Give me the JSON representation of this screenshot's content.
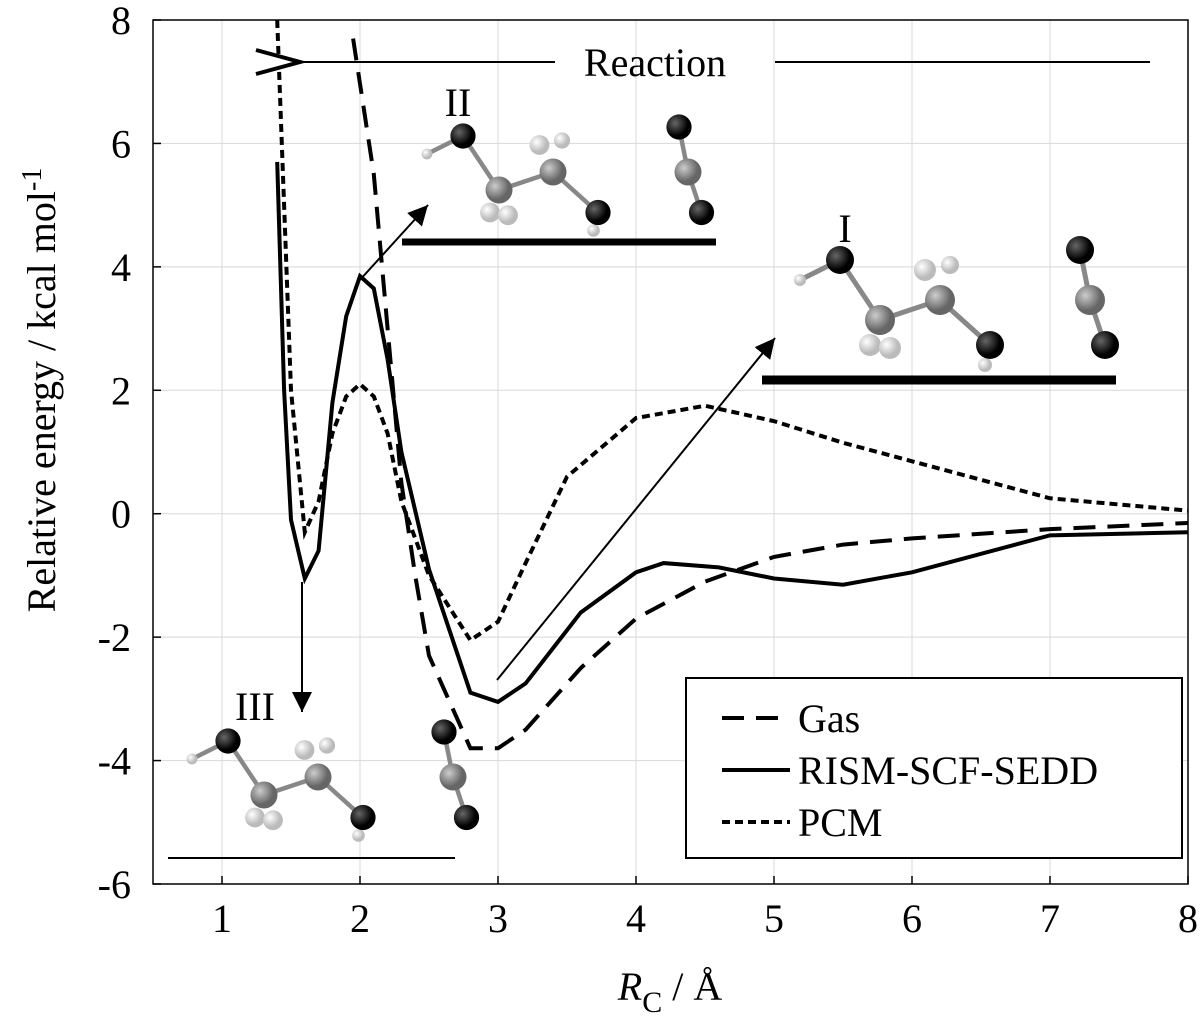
{
  "chart_data": {
    "type": "line",
    "x_label": "R",
    "x_label_sub": "C",
    "x_label_unit": " / Å",
    "y_label": "Relative energy / kcal mol",
    "y_label_sup": "-1",
    "annotations": [
      "Reaction",
      "I",
      "II",
      "III"
    ],
    "xlim": [
      0.5,
      8
    ],
    "ylim": [
      -6,
      8
    ],
    "xticks": [
      1,
      2,
      3,
      4,
      5,
      6,
      7,
      8
    ],
    "yticks": [
      -6,
      -4,
      -2,
      0,
      2,
      4,
      6,
      8
    ],
    "grid": true,
    "legend": "lower right",
    "series": [
      {
        "name": "Gas",
        "color": "#000000",
        "dash": "dashed",
        "x": [
          1.95,
          2.1,
          2.2,
          2.3,
          2.4,
          2.5,
          2.6,
          2.8,
          3.0,
          3.2,
          3.6,
          4.0,
          4.5,
          5.0,
          5.5,
          6,
          7,
          8
        ],
        "values": [
          7.7,
          5.5,
          3.0,
          0.5,
          -1.0,
          -2.3,
          -2.8,
          -3.8,
          -3.8,
          -3.5,
          -2.5,
          -1.7,
          -1.1,
          -0.7,
          -0.5,
          -0.4,
          -0.25,
          -0.15
        ]
      },
      {
        "name": "RISM-SCF-SEDD",
        "color": "#000000",
        "dash": "solid",
        "x": [
          1.4,
          1.45,
          1.5,
          1.6,
          1.7,
          1.8,
          1.9,
          2.0,
          2.1,
          2.2,
          2.3,
          2.5,
          2.8,
          3.0,
          3.2,
          3.6,
          4.0,
          4.2,
          4.6,
          5.0,
          5.5,
          6,
          7,
          8
        ],
        "values": [
          5.7,
          2.0,
          -0.1,
          -1.05,
          -0.6,
          1.8,
          3.2,
          3.85,
          3.65,
          2.5,
          1.0,
          -0.9,
          -2.9,
          -3.05,
          -2.75,
          -1.6,
          -0.95,
          -0.8,
          -0.87,
          -1.05,
          -1.15,
          -0.95,
          -0.35,
          -0.3
        ]
      },
      {
        "name": "PCM",
        "color": "#000000",
        "dash": "dotted",
        "x": [
          1.4,
          1.45,
          1.5,
          1.6,
          1.7,
          1.8,
          1.9,
          2.0,
          2.1,
          2.2,
          2.3,
          2.5,
          2.8,
          3.0,
          3.2,
          3.5,
          4.0,
          4.5,
          5.0,
          5.5,
          6,
          7,
          8
        ],
        "values": [
          8.0,
          5.0,
          2.0,
          -0.3,
          0.2,
          1.3,
          1.9,
          2.1,
          1.9,
          1.3,
          0.2,
          -1.0,
          -2.05,
          -1.75,
          -0.8,
          0.6,
          1.55,
          1.75,
          1.5,
          1.15,
          0.85,
          0.25,
          0.05
        ]
      }
    ]
  }
}
